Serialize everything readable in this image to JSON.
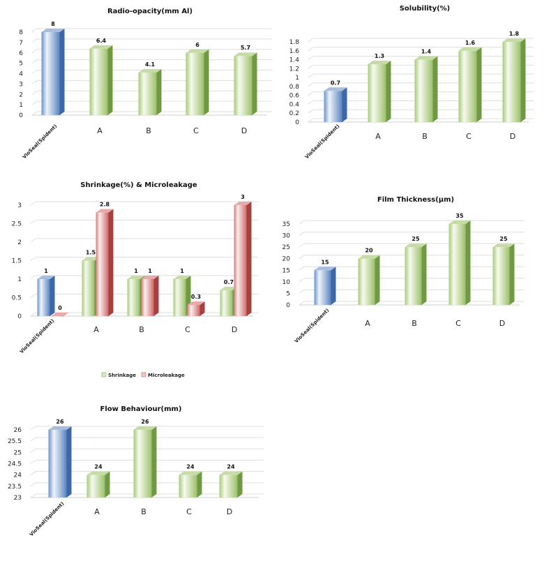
{
  "chart_data": [
    {
      "type": "bar",
      "title": "Radio-opacity(mm Al)",
      "categories": [
        "VioSeal(Spident)",
        "A",
        "B",
        "C",
        "D"
      ],
      "series": [
        {
          "name": "Radio-opacity",
          "values": [
            8,
            6.4,
            4.1,
            6,
            5.7
          ]
        }
      ],
      "value_labels": [
        [
          "8",
          "6.4",
          "4.1",
          "6",
          "5.7"
        ]
      ],
      "yticks": [
        "0",
        "1",
        "2",
        "3",
        "4",
        "5",
        "6",
        "7",
        "8"
      ],
      "ylim": [
        0,
        8
      ],
      "xlabel": "",
      "ylabel": "",
      "grid": true
    },
    {
      "type": "bar",
      "title": "Solubility(%)",
      "categories": [
        "VioSeal(Spident)",
        "A",
        "B",
        "C",
        "D"
      ],
      "series": [
        {
          "name": "Solubility",
          "values": [
            0.7,
            1.3,
            1.4,
            1.6,
            1.8
          ]
        }
      ],
      "value_labels": [
        [
          "0.7",
          "1.3",
          "1.4",
          "1.6",
          "1.8"
        ]
      ],
      "yticks": [
        "0",
        "0.2",
        "0.4",
        "0.6",
        "0.8",
        "1",
        "1.2",
        "1.4",
        "1.6",
        "1.8"
      ],
      "ylim": [
        0,
        1.8
      ],
      "xlabel": "",
      "ylabel": "",
      "grid": true
    },
    {
      "type": "bar",
      "title": "Shrinkage(%) & Microleakage",
      "categories": [
        "VioSeal(Spident)",
        "A",
        "B",
        "C",
        "D"
      ],
      "series": [
        {
          "name": "Shrinkage",
          "values": [
            1,
            1.5,
            1,
            1,
            0.7
          ]
        },
        {
          "name": "Microleakage",
          "values": [
            0,
            2.8,
            1,
            0.3,
            3
          ]
        }
      ],
      "value_labels": [
        [
          "1",
          "1.5",
          "1",
          "1",
          "0.7"
        ],
        [
          "0",
          "2.8",
          "1",
          "0.3",
          "3"
        ]
      ],
      "yticks": [
        "0",
        "0.5",
        "1",
        "1.5",
        "2",
        "2.5",
        "3"
      ],
      "ylim": [
        0,
        3
      ],
      "legend": [
        "Shrinkage",
        "Microleakage"
      ],
      "legend_position": "bottom",
      "xlabel": "",
      "ylabel": "",
      "grid": true
    },
    {
      "type": "bar",
      "title": "Film Thickness(μm)",
      "categories": [
        "VioSeal(Spident)",
        "A",
        "B",
        "C",
        "D"
      ],
      "series": [
        {
          "name": "Film Thickness",
          "values": [
            15,
            20,
            25,
            35,
            25
          ]
        }
      ],
      "value_labels": [
        [
          "15",
          "20",
          "25",
          "35",
          "25"
        ]
      ],
      "yticks": [
        "0",
        "5",
        "10",
        "15",
        "20",
        "25",
        "30",
        "35"
      ],
      "ylim": [
        0,
        35
      ],
      "xlabel": "",
      "ylabel": "",
      "grid": true
    },
    {
      "type": "bar",
      "title": "Flow Behaviour(mm)",
      "categories": [
        "VioSeal(Spident)",
        "A",
        "B",
        "C",
        "D"
      ],
      "series": [
        {
          "name": "Flow Behaviour",
          "values": [
            26,
            24,
            26,
            24,
            24
          ]
        }
      ],
      "value_labels": [
        [
          "26",
          "24",
          "26",
          "24",
          "24"
        ]
      ],
      "yticks": [
        "23",
        "23.5",
        "24",
        "24.5",
        "25",
        "25.5",
        "26"
      ],
      "ylim": [
        23,
        26
      ],
      "xlabel": "",
      "ylabel": "",
      "grid": true
    }
  ],
  "colors": {
    "blue_light": "#eaf1fa",
    "blue_dark": "#4f7ab8",
    "green_light": "#f3f8ea",
    "green_dark": "#8db55e",
    "red_light": "#fbecec",
    "red_dark": "#cc5a5a",
    "grid": "#dedede"
  }
}
